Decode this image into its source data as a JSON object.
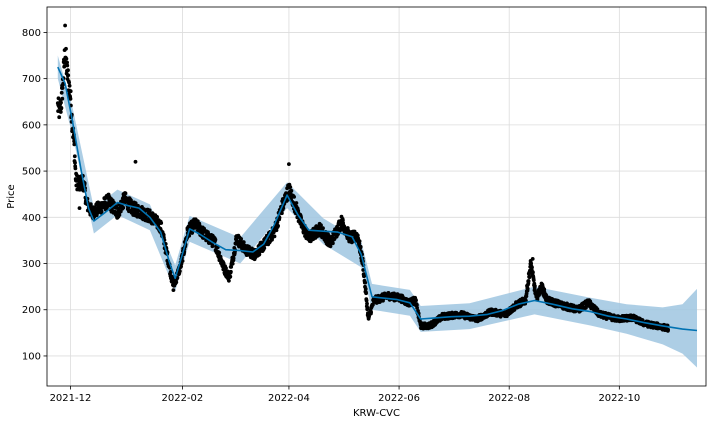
{
  "chart_data": {
    "type": "line",
    "title": "",
    "xlabel": "KRW-CVC",
    "ylabel": "Price",
    "grid": true,
    "xlim": [
      "2021-11-18",
      "2022-11-18"
    ],
    "ylim": [
      35,
      855
    ],
    "x_ticks": [
      {
        "date": "2021-12-01",
        "label": "2021-12"
      },
      {
        "date": "2022-02-01",
        "label": "2022-02"
      },
      {
        "date": "2022-04-01",
        "label": "2022-04"
      },
      {
        "date": "2022-06-01",
        "label": "2022-06"
      },
      {
        "date": "2022-08-01",
        "label": "2022-08"
      },
      {
        "date": "2022-10-01",
        "label": "2022-10"
      }
    ],
    "y_ticks": [
      100,
      200,
      300,
      400,
      500,
      600,
      700,
      800
    ],
    "colors": {
      "observed": "#000000",
      "forecast": "#0072b2",
      "interval": "#9fc6e0",
      "grid": "#dcdcdc"
    },
    "forecast": {
      "name": "yhat",
      "points": [
        [
          "2021-11-24",
          725
        ],
        [
          "2021-11-28",
          690
        ],
        [
          "2021-12-02",
          610
        ],
        [
          "2021-12-07",
          500
        ],
        [
          "2021-12-11",
          420
        ],
        [
          "2021-12-14",
          392
        ],
        [
          "2021-12-20",
          410
        ],
        [
          "2021-12-27",
          432
        ],
        [
          "2022-01-02",
          425
        ],
        [
          "2022-01-08",
          420
        ],
        [
          "2022-01-14",
          400
        ],
        [
          "2022-01-20",
          368
        ],
        [
          "2022-01-25",
          300
        ],
        [
          "2022-01-28",
          268
        ],
        [
          "2022-02-01",
          320
        ],
        [
          "2022-02-05",
          375
        ],
        [
          "2022-02-10",
          365
        ],
        [
          "2022-02-18",
          345
        ],
        [
          "2022-02-25",
          330
        ],
        [
          "2022-03-05",
          328
        ],
        [
          "2022-03-12",
          325
        ],
        [
          "2022-03-18",
          342
        ],
        [
          "2022-03-24",
          385
        ],
        [
          "2022-03-31",
          448
        ],
        [
          "2022-04-06",
          405
        ],
        [
          "2022-04-12",
          372
        ],
        [
          "2022-04-20",
          370
        ],
        [
          "2022-04-28",
          368
        ],
        [
          "2022-05-06",
          358
        ],
        [
          "2022-05-11",
          320
        ],
        [
          "2022-05-17",
          228
        ],
        [
          "2022-05-24",
          225
        ],
        [
          "2022-05-31",
          222
        ],
        [
          "2022-06-07",
          215
        ],
        [
          "2022-06-13",
          180
        ],
        [
          "2022-06-20",
          182
        ],
        [
          "2022-06-30",
          185
        ],
        [
          "2022-07-10",
          186
        ],
        [
          "2022-07-20",
          190
        ],
        [
          "2022-07-28",
          198
        ],
        [
          "2022-08-06",
          212
        ],
        [
          "2022-08-15",
          220
        ],
        [
          "2022-08-25",
          212
        ],
        [
          "2022-09-05",
          202
        ],
        [
          "2022-09-15",
          196
        ],
        [
          "2022-09-25",
          186
        ],
        [
          "2022-10-05",
          180
        ],
        [
          "2022-10-15",
          172
        ],
        [
          "2022-10-25",
          165
        ],
        [
          "2022-11-05",
          158
        ],
        [
          "2022-11-13",
          155
        ]
      ]
    },
    "interval": {
      "name": "yhat_lower / yhat_upper",
      "points": [
        [
          "2021-11-24",
          700,
          750
        ],
        [
          "2021-12-02",
          580,
          640
        ],
        [
          "2021-12-14",
          365,
          420
        ],
        [
          "2021-12-27",
          405,
          460
        ],
        [
          "2022-01-14",
          372,
          428
        ],
        [
          "2022-01-28",
          240,
          296
        ],
        [
          "2022-02-05",
          347,
          403
        ],
        [
          "2022-03-05",
          300,
          356
        ],
        [
          "2022-03-31",
          420,
          476
        ],
        [
          "2022-04-20",
          342,
          398
        ],
        [
          "2022-05-11",
          292,
          348
        ],
        [
          "2022-05-17",
          200,
          256
        ],
        [
          "2022-06-07",
          187,
          243
        ],
        [
          "2022-06-13",
          152,
          208
        ],
        [
          "2022-07-10",
          158,
          214
        ],
        [
          "2022-08-15",
          190,
          250
        ],
        [
          "2022-09-15",
          166,
          226
        ],
        [
          "2022-10-05",
          148,
          212
        ],
        [
          "2022-10-25",
          125,
          205
        ],
        [
          "2022-11-05",
          105,
          212
        ],
        [
          "2022-11-13",
          75,
          245
        ]
      ]
    },
    "observed": {
      "name": "y",
      "x_range": [
        "2021-11-24",
        "2022-10-28"
      ],
      "anchors": [
        [
          "2021-11-24",
          640
        ],
        [
          "2021-11-25",
          628
        ],
        [
          "2021-11-26",
          650
        ],
        [
          "2021-11-27",
          700
        ],
        [
          "2021-11-28",
          760
        ],
        [
          "2021-11-29",
          720
        ],
        [
          "2021-11-30",
          690
        ],
        [
          "2021-12-01",
          660
        ],
        [
          "2021-12-02",
          600
        ],
        [
          "2021-12-03",
          560
        ],
        [
          "2021-12-04",
          480
        ],
        [
          "2021-12-06",
          470
        ],
        [
          "2021-12-08",
          480
        ],
        [
          "2021-12-10",
          430
        ],
        [
          "2021-12-13",
          410
        ],
        [
          "2021-12-17",
          420
        ],
        [
          "2021-12-22",
          435
        ],
        [
          "2021-12-27",
          410
        ],
        [
          "2021-12-31",
          440
        ],
        [
          "2022-01-04",
          420
        ],
        [
          "2022-01-10",
          410
        ],
        [
          "2022-01-15",
          400
        ],
        [
          "2022-01-20",
          380
        ],
        [
          "2022-01-24",
          310
        ],
        [
          "2022-01-27",
          250
        ],
        [
          "2022-01-31",
          295
        ],
        [
          "2022-02-04",
          370
        ],
        [
          "2022-02-08",
          385
        ],
        [
          "2022-02-14",
          360
        ],
        [
          "2022-02-19",
          345
        ],
        [
          "2022-02-24",
          290
        ],
        [
          "2022-02-27",
          270
        ],
        [
          "2022-03-03",
          355
        ],
        [
          "2022-03-08",
          330
        ],
        [
          "2022-03-13",
          320
        ],
        [
          "2022-03-18",
          340
        ],
        [
          "2022-03-24",
          370
        ],
        [
          "2022-03-28",
          420
        ],
        [
          "2022-04-01",
          460
        ],
        [
          "2022-04-04",
          430
        ],
        [
          "2022-04-08",
          385
        ],
        [
          "2022-04-12",
          355
        ],
        [
          "2022-04-18",
          375
        ],
        [
          "2022-04-24",
          345
        ],
        [
          "2022-04-30",
          390
        ],
        [
          "2022-05-05",
          355
        ],
        [
          "2022-05-09",
          360
        ],
        [
          "2022-05-12",
          300
        ],
        [
          "2022-05-15",
          180
        ],
        [
          "2022-05-18",
          220
        ],
        [
          "2022-05-26",
          230
        ],
        [
          "2022-06-02",
          225
        ],
        [
          "2022-06-06",
          215
        ],
        [
          "2022-06-10",
          220
        ],
        [
          "2022-06-13",
          165
        ],
        [
          "2022-06-18",
          165
        ],
        [
          "2022-06-25",
          185
        ],
        [
          "2022-07-05",
          190
        ],
        [
          "2022-07-14",
          180
        ],
        [
          "2022-07-22",
          195
        ],
        [
          "2022-07-30",
          190
        ],
        [
          "2022-08-05",
          210
        ],
        [
          "2022-08-10",
          220
        ],
        [
          "2022-08-13",
          300
        ],
        [
          "2022-08-16",
          225
        ],
        [
          "2022-08-19",
          250
        ],
        [
          "2022-08-22",
          220
        ],
        [
          "2022-08-30",
          210
        ],
        [
          "2022-09-08",
          200
        ],
        [
          "2022-09-14",
          215
        ],
        [
          "2022-09-20",
          190
        ],
        [
          "2022-09-30",
          180
        ],
        [
          "2022-10-08",
          183
        ],
        [
          "2022-10-15",
          170
        ],
        [
          "2022-10-22",
          165
        ],
        [
          "2022-10-28",
          160
        ]
      ],
      "spikes": [
        [
          "2021-11-28",
          815
        ],
        [
          "2021-12-06",
          420
        ],
        [
          "2022-01-06",
          520
        ],
        [
          "2022-04-01",
          515
        ],
        [
          "2022-08-14",
          310
        ]
      ]
    }
  }
}
